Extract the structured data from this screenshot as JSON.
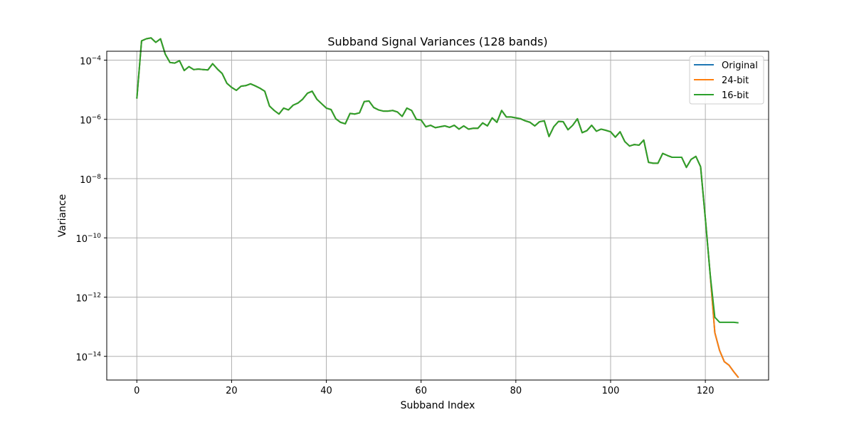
{
  "chart_data": {
    "type": "line",
    "title": "Subband Signal Variances (128 bands)",
    "xlabel": "Subband Index",
    "ylabel": "Variance",
    "yscale": "log",
    "xlim": [
      -6.35,
      133.35
    ],
    "ylim": [
      -14.8,
      -3.7
    ],
    "xticks": [
      0,
      20,
      40,
      60,
      80,
      100,
      120
    ],
    "yticks": [
      {
        "exp": -4,
        "label": "10",
        "sup": "−4"
      },
      {
        "exp": -6,
        "label": "10",
        "sup": "−6"
      },
      {
        "exp": -8,
        "label": "10",
        "sup": "−8"
      },
      {
        "exp": -10,
        "label": "10",
        "sup": "−10"
      },
      {
        "exp": -12,
        "label": "10",
        "sup": "−12"
      },
      {
        "exp": -14,
        "label": "10",
        "sup": "−14"
      }
    ],
    "grid": true,
    "legend_position": "top-right",
    "x": [
      0,
      1,
      2,
      3,
      4,
      5,
      6,
      7,
      8,
      9,
      10,
      11,
      12,
      13,
      14,
      15,
      16,
      17,
      18,
      19,
      20,
      21,
      22,
      23,
      24,
      25,
      26,
      27,
      28,
      29,
      30,
      31,
      32,
      33,
      34,
      35,
      36,
      37,
      38,
      39,
      40,
      41,
      42,
      43,
      44,
      45,
      46,
      47,
      48,
      49,
      50,
      51,
      52,
      53,
      54,
      55,
      56,
      57,
      58,
      59,
      60,
      61,
      62,
      63,
      64,
      65,
      66,
      67,
      68,
      69,
      70,
      71,
      72,
      73,
      74,
      75,
      76,
      77,
      78,
      79,
      80,
      81,
      82,
      83,
      84,
      85,
      86,
      87,
      88,
      89,
      90,
      91,
      92,
      93,
      94,
      95,
      96,
      97,
      98,
      99,
      100,
      101,
      102,
      103,
      104,
      105,
      106,
      107,
      108,
      109,
      110,
      111,
      112,
      113,
      114,
      115,
      116,
      117,
      118,
      119,
      120,
      121,
      122,
      123,
      124,
      125,
      126,
      127
    ],
    "series": [
      {
        "name": "Original",
        "color": "#1f77b4",
        "log10_values": [
          -5.3,
          -3.35,
          -3.28,
          -3.25,
          -3.4,
          -3.28,
          -3.8,
          -4.08,
          -4.1,
          -4.02,
          -4.35,
          -4.22,
          -4.32,
          -4.3,
          -4.32,
          -4.33,
          -4.12,
          -4.3,
          -4.45,
          -4.78,
          -4.92,
          -5.02,
          -4.88,
          -4.86,
          -4.8,
          -4.87,
          -4.95,
          -5.05,
          -5.55,
          -5.7,
          -5.82,
          -5.62,
          -5.68,
          -5.52,
          -5.45,
          -5.32,
          -5.12,
          -5.05,
          -5.32,
          -5.47,
          -5.62,
          -5.67,
          -5.98,
          -6.1,
          -6.15,
          -5.8,
          -5.82,
          -5.78,
          -5.4,
          -5.38,
          -5.6,
          -5.68,
          -5.72,
          -5.72,
          -5.7,
          -5.75,
          -5.9,
          -5.62,
          -5.7,
          -6.0,
          -6.02,
          -6.25,
          -6.2,
          -6.28,
          -6.25,
          -6.22,
          -6.27,
          -6.2,
          -6.33,
          -6.22,
          -6.33,
          -6.3,
          -6.3,
          -6.12,
          -6.22,
          -5.95,
          -6.1,
          -5.7,
          -5.92,
          -5.92,
          -5.95,
          -5.98,
          -6.05,
          -6.1,
          -6.22,
          -6.08,
          -6.05,
          -6.58,
          -6.25,
          -6.07,
          -6.08,
          -6.35,
          -6.2,
          -5.98,
          -6.45,
          -6.38,
          -6.2,
          -6.4,
          -6.33,
          -6.37,
          -6.42,
          -6.6,
          -6.42,
          -6.75,
          -6.9,
          -6.85,
          -6.87,
          -6.7,
          -7.45,
          -7.48,
          -7.48,
          -7.15,
          -7.22,
          -7.28,
          -7.28,
          -7.28,
          -7.62,
          -7.35,
          -7.25,
          -7.6,
          -9.35,
          -11.2,
          -13.2,
          -13.8,
          -14.18,
          -14.3,
          -14.52,
          -14.72
        ]
      },
      {
        "name": "24-bit",
        "color": "#ff7f0e",
        "log10_values": [
          -5.3,
          -3.35,
          -3.28,
          -3.25,
          -3.4,
          -3.28,
          -3.8,
          -4.08,
          -4.1,
          -4.02,
          -4.35,
          -4.22,
          -4.32,
          -4.3,
          -4.32,
          -4.33,
          -4.12,
          -4.3,
          -4.45,
          -4.78,
          -4.92,
          -5.02,
          -4.88,
          -4.86,
          -4.8,
          -4.87,
          -4.95,
          -5.05,
          -5.55,
          -5.7,
          -5.82,
          -5.62,
          -5.68,
          -5.52,
          -5.45,
          -5.32,
          -5.12,
          -5.05,
          -5.32,
          -5.47,
          -5.62,
          -5.67,
          -5.98,
          -6.1,
          -6.15,
          -5.8,
          -5.82,
          -5.78,
          -5.4,
          -5.38,
          -5.6,
          -5.68,
          -5.72,
          -5.72,
          -5.7,
          -5.75,
          -5.9,
          -5.62,
          -5.7,
          -6.0,
          -6.02,
          -6.25,
          -6.2,
          -6.28,
          -6.25,
          -6.22,
          -6.27,
          -6.2,
          -6.33,
          -6.22,
          -6.33,
          -6.3,
          -6.3,
          -6.12,
          -6.22,
          -5.95,
          -6.1,
          -5.7,
          -5.92,
          -5.92,
          -5.95,
          -5.98,
          -6.05,
          -6.1,
          -6.22,
          -6.08,
          -6.05,
          -6.58,
          -6.25,
          -6.07,
          -6.08,
          -6.35,
          -6.2,
          -5.98,
          -6.45,
          -6.38,
          -6.2,
          -6.4,
          -6.33,
          -6.37,
          -6.42,
          -6.6,
          -6.42,
          -6.75,
          -6.9,
          -6.85,
          -6.87,
          -6.7,
          -7.45,
          -7.48,
          -7.48,
          -7.15,
          -7.22,
          -7.28,
          -7.28,
          -7.28,
          -7.62,
          -7.35,
          -7.25,
          -7.6,
          -9.35,
          -11.2,
          -13.2,
          -13.8,
          -14.18,
          -14.3,
          -14.52,
          -14.72
        ]
      },
      {
        "name": "16-bit",
        "color": "#2ca02c",
        "log10_values": [
          -5.3,
          -3.35,
          -3.28,
          -3.25,
          -3.4,
          -3.28,
          -3.8,
          -4.08,
          -4.1,
          -4.02,
          -4.35,
          -4.22,
          -4.32,
          -4.3,
          -4.32,
          -4.33,
          -4.12,
          -4.3,
          -4.45,
          -4.78,
          -4.92,
          -5.02,
          -4.88,
          -4.86,
          -4.8,
          -4.87,
          -4.95,
          -5.05,
          -5.55,
          -5.7,
          -5.82,
          -5.62,
          -5.68,
          -5.52,
          -5.45,
          -5.32,
          -5.12,
          -5.05,
          -5.32,
          -5.47,
          -5.62,
          -5.67,
          -5.98,
          -6.1,
          -6.15,
          -5.8,
          -5.82,
          -5.78,
          -5.4,
          -5.38,
          -5.6,
          -5.68,
          -5.72,
          -5.72,
          -5.7,
          -5.75,
          -5.9,
          -5.62,
          -5.7,
          -6.0,
          -6.02,
          -6.25,
          -6.2,
          -6.28,
          -6.25,
          -6.22,
          -6.27,
          -6.2,
          -6.33,
          -6.22,
          -6.33,
          -6.3,
          -6.3,
          -6.12,
          -6.22,
          -5.95,
          -6.1,
          -5.7,
          -5.92,
          -5.92,
          -5.95,
          -5.98,
          -6.05,
          -6.1,
          -6.22,
          -6.08,
          -6.05,
          -6.58,
          -6.25,
          -6.07,
          -6.08,
          -6.35,
          -6.2,
          -5.98,
          -6.45,
          -6.38,
          -6.2,
          -6.4,
          -6.33,
          -6.37,
          -6.42,
          -6.6,
          -6.42,
          -6.75,
          -6.9,
          -6.85,
          -6.87,
          -6.7,
          -7.45,
          -7.48,
          -7.48,
          -7.15,
          -7.22,
          -7.28,
          -7.28,
          -7.28,
          -7.62,
          -7.35,
          -7.25,
          -7.6,
          -9.35,
          -11.2,
          -12.68,
          -12.85,
          -12.85,
          -12.85,
          -12.85,
          -12.87
        ]
      }
    ]
  }
}
